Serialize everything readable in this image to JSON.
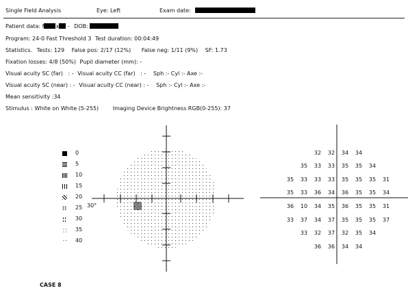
{
  "header": {
    "title": "Single Field Analysis",
    "eye": "Eye: Left",
    "exam_date_label": "Exam date:"
  },
  "patient": {
    "patient_label": "Patient data: f",
    "patient_mid": "x",
    "patient_dash": "-",
    "dob_label": "DOB:",
    "program": "Program: 24-0 Fast Threshold 3",
    "test_duration": "Test duration: 00:04:49",
    "stats_label": "Statistics.",
    "tests": "Tests: 129",
    "false_pos": "False pos: 2/17 (12%)",
    "false_neg": "False neg: 1/11 (9%)",
    "sf": "SF: 1.73",
    "fixation": "Fixation losses: 4/8 (50%)",
    "pupil": "Pupil diameter (mm): -",
    "va_sc_far": "Visual acuity SC (far)   : -",
    "va_cc_far": "Visual acuity CC (far)   : -",
    "sph_cyl_axe_1": "Sph :- Cyl :- Axe :-",
    "va_sc_near": "Visual acuity SC (near) : -",
    "va_cc_near": "Visual acuity CC (near) : -",
    "sph_cyl_axe_2": "Sph :- Cyl :- Axe :-",
    "mean_sensitivity": "Mean sensitivity :34",
    "stimulus": "Stimulus : White on White (5-255)",
    "brightness": "Imaging Device Brightness RGB(0-255): 37"
  },
  "legend": [
    "0",
    "5",
    "10",
    "15",
    "20",
    "25",
    "30",
    "35",
    "40"
  ],
  "field_plot": {
    "degree_label": "30°"
  },
  "threshold_grid": {
    "rows": [
      [
        "",
        "",
        "32",
        "32",
        "34",
        "34",
        "",
        ""
      ],
      [
        "",
        "35",
        "33",
        "33",
        "35",
        "35",
        "34",
        ""
      ],
      [
        "35",
        "33",
        "33",
        "33",
        "35",
        "35",
        "35",
        "31"
      ],
      [
        "35",
        "33",
        "36",
        "34",
        "36",
        "35",
        "35",
        "34"
      ],
      [
        "36",
        "10",
        "34",
        "35",
        "36",
        "35",
        "35",
        "31"
      ],
      [
        "33",
        "37",
        "34",
        "37",
        "35",
        "35",
        "35",
        "37"
      ],
      [
        "",
        "33",
        "32",
        "37",
        "32",
        "35",
        "34",
        ""
      ],
      [
        "",
        "",
        "36",
        "36",
        "34",
        "34",
        "",
        ""
      ]
    ]
  },
  "footer": {
    "case": "CASE 8"
  }
}
